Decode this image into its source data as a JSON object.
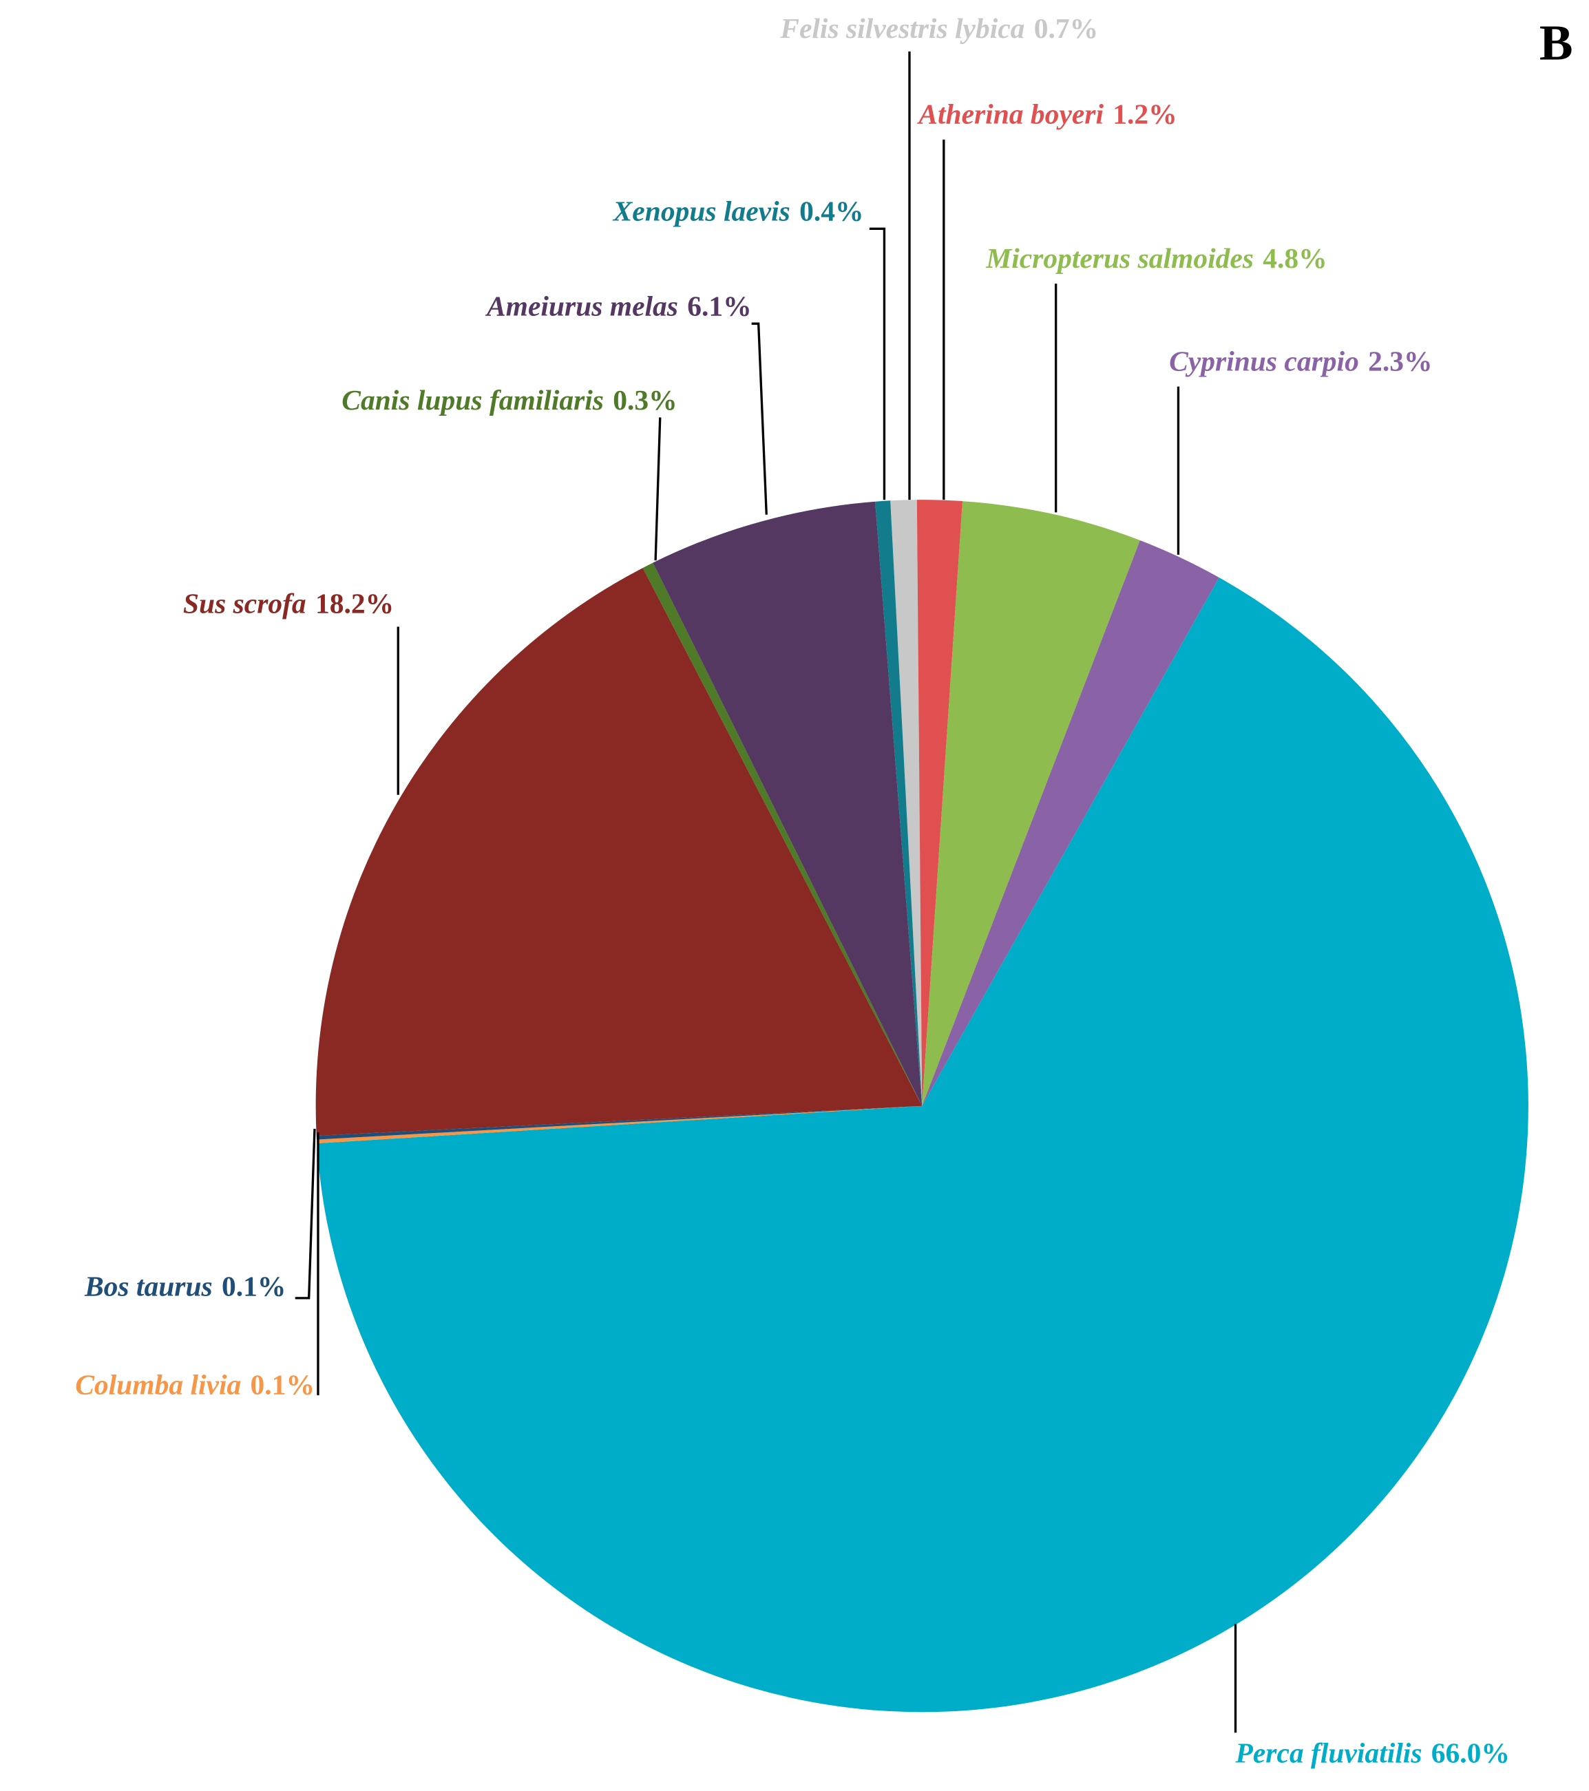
{
  "chart_data": {
    "type": "pie",
    "title": "B",
    "categories": [
      "Felis silvestris lybica",
      "Atherina boyeri",
      "Micropterus salmoides",
      "Cyprinus carpio",
      "Perca fluviatilis",
      "Columba livia",
      "Bos taurus",
      "Sus scrofa",
      "Canis lupus familiaris",
      "Ameiurus melas",
      "Xenopus laevis"
    ],
    "values": [
      0.7,
      1.2,
      4.8,
      2.3,
      66.0,
      0.1,
      0.1,
      18.2,
      0.3,
      6.1,
      0.4
    ],
    "value_labels": [
      "0.7%",
      "1.2%",
      "4.8%",
      "2.3%",
      "66.0%",
      "0.1%",
      "0.1%",
      "18.2%",
      "0.3%",
      "6.1%",
      "0.4%"
    ],
    "colors": [
      "#c8c8c8",
      "#e05050",
      "#8fbc4f",
      "#8a63a6",
      "#00adc8",
      "#f79646",
      "#1f4e79",
      "#8a2824",
      "#4f7a28",
      "#553862",
      "#137c8c"
    ]
  }
}
